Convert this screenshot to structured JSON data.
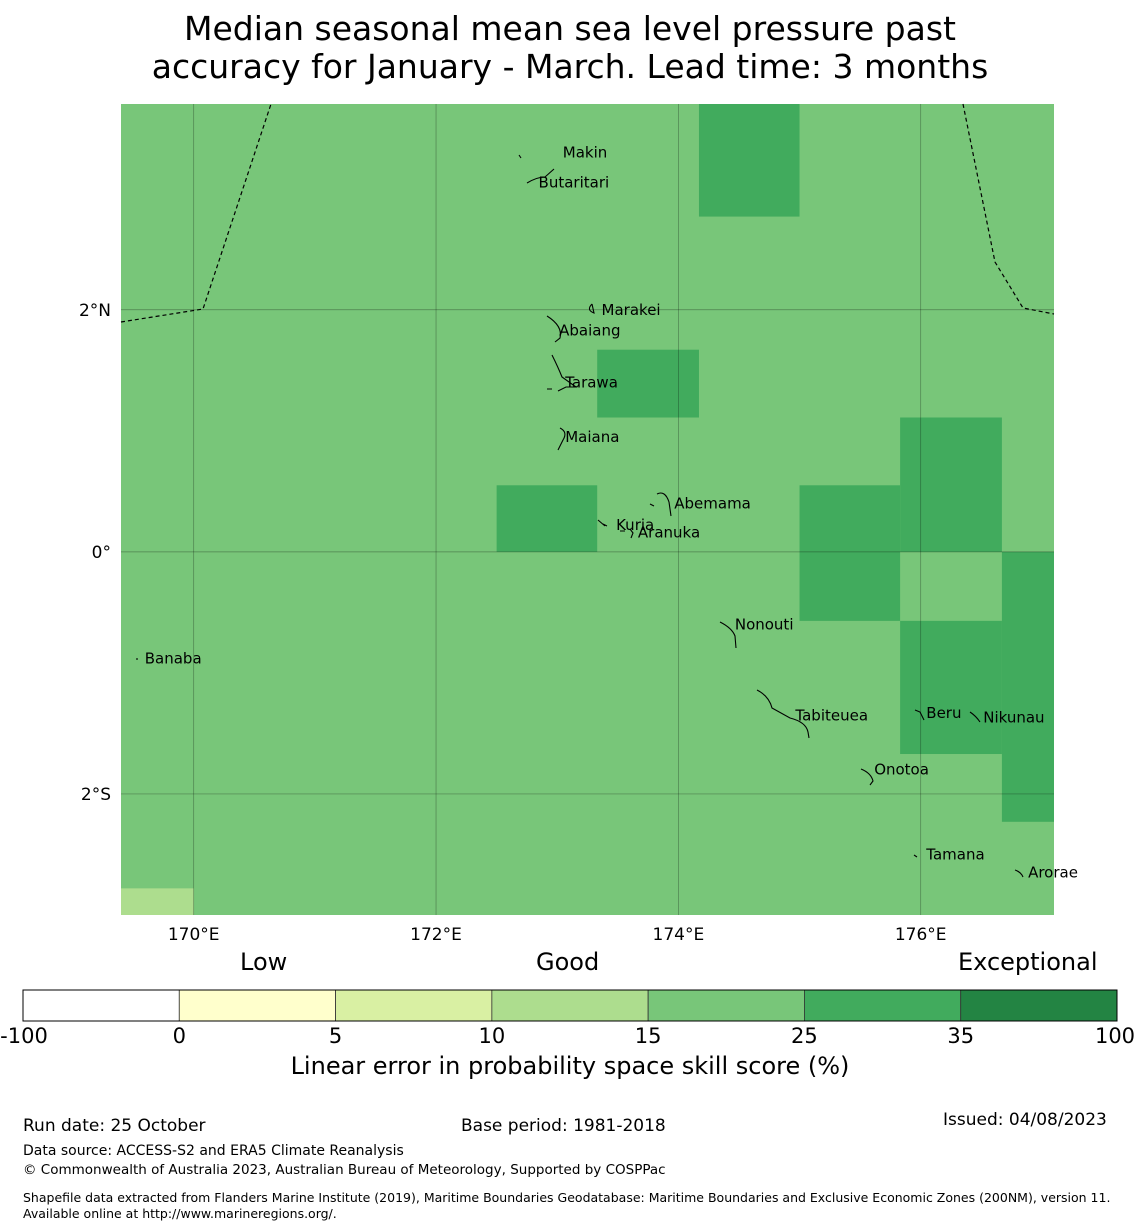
{
  "title": {
    "line1": "Median seasonal mean sea level pressure past",
    "line2": "accuracy for January - March. Lead time: 3 months"
  },
  "map": {
    "lon_range": [
      169.4,
      177.1
    ],
    "lat_range": [
      -3.0,
      3.7
    ],
    "x_ticks": [
      {
        "value": 170,
        "label": "170°E"
      },
      {
        "value": 172,
        "label": "172°E"
      },
      {
        "value": 174,
        "label": "174°E"
      },
      {
        "value": 176,
        "label": "176°E"
      }
    ],
    "y_ticks": [
      {
        "value": 2,
        "label": "2°N"
      },
      {
        "value": 0,
        "label": "0°"
      },
      {
        "value": -2,
        "label": "2°S"
      }
    ],
    "base_fill": "#78c679",
    "skill_cells": [
      {
        "lon0": 174.17,
        "lon1": 175.0,
        "lat0": 2.77,
        "lat1": 3.7,
        "color": "#41ab5d"
      },
      {
        "lon0": 173.33,
        "lon1": 174.17,
        "lat0": 1.11,
        "lat1": 1.67,
        "color": "#41ab5d"
      },
      {
        "lon0": 172.5,
        "lon1": 173.33,
        "lat0": 0.0,
        "lat1": 0.55,
        "color": "#41ab5d"
      },
      {
        "lon0": 175.0,
        "lon1": 175.83,
        "lat0": -0.57,
        "lat1": 0.55,
        "color": "#41ab5d"
      },
      {
        "lon0": 175.83,
        "lon1": 176.67,
        "lat0": 0.0,
        "lat1": 1.11,
        "color": "#41ab5d"
      },
      {
        "lon0": 176.67,
        "lon1": 177.1,
        "lat0": -2.23,
        "lat1": 0.0,
        "color": "#41ab5d"
      },
      {
        "lon0": 175.83,
        "lon1": 176.67,
        "lat0": -1.67,
        "lat1": -0.57,
        "color": "#41ab5d"
      },
      {
        "lon0": 169.4,
        "lon1": 170.0,
        "lat0": -3.0,
        "lat1": -2.78,
        "color": "#addd8e"
      }
    ],
    "islands": [
      {
        "name": "Makin",
        "lon": 172.98,
        "lat": 3.3
      },
      {
        "name": "Butaritari",
        "lon": 172.78,
        "lat": 3.05
      },
      {
        "name": "Marakei",
        "lon": 173.3,
        "lat": 2.0
      },
      {
        "name": "Abaiang",
        "lon": 172.95,
        "lat": 1.83
      },
      {
        "name": "Tarawa",
        "lon": 173.0,
        "lat": 1.4
      },
      {
        "name": "Maiana",
        "lon": 173.0,
        "lat": 0.95
      },
      {
        "name": "Abemama",
        "lon": 173.9,
        "lat": 0.4
      },
      {
        "name": "Kuria",
        "lon": 173.42,
        "lat": 0.22
      },
      {
        "name": "Aranuka",
        "lon": 173.6,
        "lat": 0.16
      },
      {
        "name": "Nonouti",
        "lon": 174.4,
        "lat": -0.6
      },
      {
        "name": "Banaba",
        "lon": 169.53,
        "lat": -0.88
      },
      {
        "name": "Tabiteuea",
        "lon": 174.9,
        "lat": -1.35
      },
      {
        "name": "Beru",
        "lon": 175.98,
        "lat": -1.33
      },
      {
        "name": "Nikunau",
        "lon": 176.45,
        "lat": -1.37
      },
      {
        "name": "Onotoa",
        "lon": 175.55,
        "lat": -1.8
      },
      {
        "name": "Tamana",
        "lon": 175.98,
        "lat": -2.5
      },
      {
        "name": "Arorae",
        "lon": 176.82,
        "lat": -2.65
      }
    ]
  },
  "colorbar": {
    "categories": [
      "Low",
      "Good",
      "Exceptional"
    ],
    "bins": [
      {
        "from": -100,
        "to": 0,
        "color": "#ffffff"
      },
      {
        "from": 0,
        "to": 5,
        "color": "#ffffcc"
      },
      {
        "from": 5,
        "to": 10,
        "color": "#d9f0a3"
      },
      {
        "from": 10,
        "to": 15,
        "color": "#addd8e"
      },
      {
        "from": 15,
        "to": 25,
        "color": "#78c679"
      },
      {
        "from": 25,
        "to": 35,
        "color": "#41ab5d"
      },
      {
        "from": 35,
        "to": 100,
        "color": "#238443"
      }
    ],
    "ticks": [
      "-100",
      "0",
      "5",
      "10",
      "15",
      "25",
      "35",
      "100"
    ],
    "label": "Linear error in probability space skill score (%)"
  },
  "footer": {
    "run_date": "Run date: 25 October",
    "base_period": "Base period: 1981-2018",
    "issued": "Issued: 04/08/2023",
    "data_source": "Data source: ACCESS-S2 and ERA5 Climate Reanalysis",
    "copyright": "© Commonwealth of Australia 2023, Australian Bureau of Meteorology, Supported by COSPPac",
    "shapefile": "Shapefile data extracted from Flanders Marine Institute (2019), Maritime Boundaries Geodatabase: Maritime Boundaries and Exclusive Economic Zones (200NM), version 11. Available online at http://www.marineregions.org/."
  }
}
